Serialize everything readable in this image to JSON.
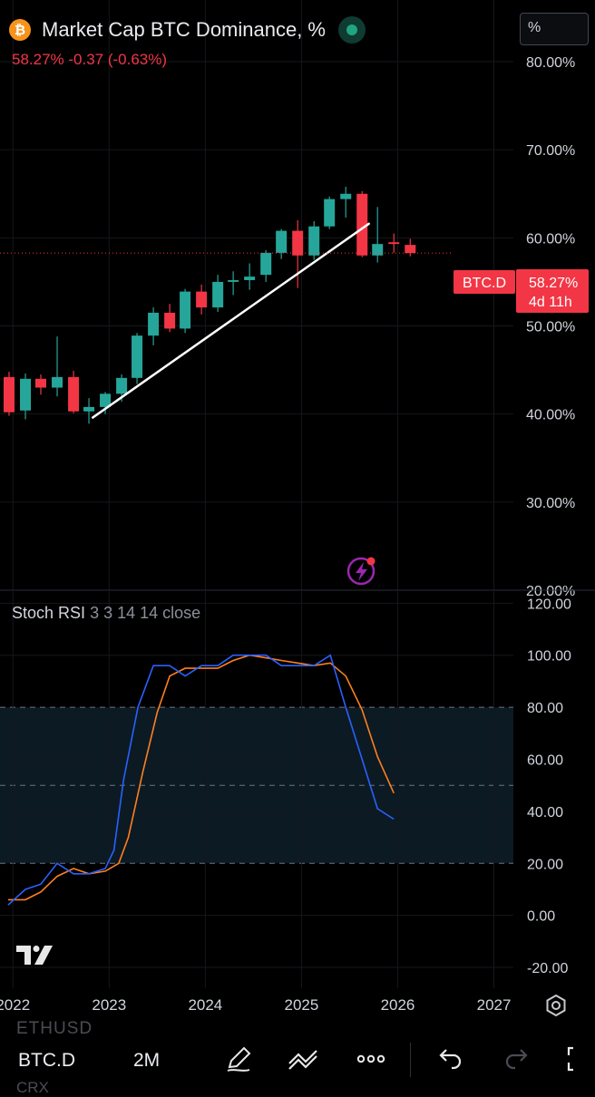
{
  "header": {
    "title": "Market Cap BTC Dominance, %",
    "change_text": "58.27%  -0.37 (-0.63%)",
    "scale_button": "%"
  },
  "price_label": {
    "symbol": "BTC.D",
    "value": "58.27%",
    "countdown": "4d 11h"
  },
  "indicator": {
    "name": "Stoch RSI",
    "params": "3 3 14 14 close"
  },
  "toolbar": {
    "symbol": "BTC.D",
    "interval": "2M",
    "peek_above": "ETHUSD",
    "peek_below": "CRX"
  },
  "colors": {
    "up": "#26a69a",
    "down": "#f23645",
    "k_line": "#2962ff",
    "d_line": "#ff7f1e",
    "band": "#0c1a24"
  },
  "icons": [
    "bitcoin-icon",
    "live-status-icon",
    "lightning-alert-icon",
    "tradingview-logo",
    "settings-icon",
    "pencil-icon",
    "trendline-icon",
    "more-icon",
    "undo-icon",
    "redo-icon",
    "fullscreen-icon"
  ],
  "chart_data": [
    {
      "type": "candlestick",
      "title": "Market Cap BTC Dominance, %",
      "y_ticks": [
        "80.00%",
        "70.00%",
        "60.00%",
        "50.00%",
        "40.00%",
        "30.00%",
        "20.00%"
      ],
      "ylim": [
        20,
        87
      ],
      "x_ticks": [
        "2022",
        "2023",
        "2024",
        "2025",
        "2026",
        "2027"
      ],
      "x_tick_values": [
        2022,
        2023,
        2024,
        2025,
        2026,
        2027
      ],
      "xlim": [
        2021.96,
        2027.9
      ],
      "current_value": 58.27,
      "candles": [
        {
          "t": 2021.96,
          "o": 44.2,
          "h": 44.8,
          "l": 39.8,
          "c": 40.2
        },
        {
          "t": 2022.13,
          "o": 40.4,
          "h": 44.6,
          "l": 39.4,
          "c": 44.0
        },
        {
          "t": 2022.29,
          "o": 44.0,
          "h": 44.5,
          "l": 42.2,
          "c": 43.0
        },
        {
          "t": 2022.46,
          "o": 43.0,
          "h": 48.8,
          "l": 42.0,
          "c": 44.2
        },
        {
          "t": 2022.63,
          "o": 44.2,
          "h": 44.9,
          "l": 40.1,
          "c": 40.3
        },
        {
          "t": 2022.79,
          "o": 40.3,
          "h": 41.8,
          "l": 38.9,
          "c": 40.8
        },
        {
          "t": 2022.96,
          "o": 40.8,
          "h": 42.5,
          "l": 40.0,
          "c": 42.3
        },
        {
          "t": 2023.13,
          "o": 42.3,
          "h": 44.5,
          "l": 41.4,
          "c": 44.1
        },
        {
          "t": 2023.29,
          "o": 44.1,
          "h": 49.2,
          "l": 43.4,
          "c": 48.9
        },
        {
          "t": 2023.46,
          "o": 48.9,
          "h": 52.1,
          "l": 47.8,
          "c": 51.5
        },
        {
          "t": 2023.63,
          "o": 51.5,
          "h": 52.5,
          "l": 49.3,
          "c": 49.7
        },
        {
          "t": 2023.79,
          "o": 49.7,
          "h": 54.2,
          "l": 49.2,
          "c": 53.9
        },
        {
          "t": 2023.96,
          "o": 53.9,
          "h": 54.7,
          "l": 51.3,
          "c": 52.1
        },
        {
          "t": 2024.13,
          "o": 52.1,
          "h": 55.8,
          "l": 51.6,
          "c": 55.0
        },
        {
          "t": 2024.29,
          "o": 55.0,
          "h": 56.2,
          "l": 53.5,
          "c": 55.2
        },
        {
          "t": 2024.46,
          "o": 55.2,
          "h": 57.1,
          "l": 54.1,
          "c": 55.6
        },
        {
          "t": 2024.63,
          "o": 55.8,
          "h": 58.6,
          "l": 55.0,
          "c": 58.3
        },
        {
          "t": 2024.79,
          "o": 58.3,
          "h": 61.0,
          "l": 57.6,
          "c": 60.8
        },
        {
          "t": 2024.96,
          "o": 60.8,
          "h": 62.0,
          "l": 54.3,
          "c": 58.0
        },
        {
          "t": 2025.13,
          "o": 58.0,
          "h": 61.9,
          "l": 57.5,
          "c": 61.3
        },
        {
          "t": 2025.29,
          "o": 61.3,
          "h": 64.7,
          "l": 61.0,
          "c": 64.4
        },
        {
          "t": 2025.46,
          "o": 64.4,
          "h": 65.8,
          "l": 62.3,
          "c": 65.0
        },
        {
          "t": 2025.63,
          "o": 65.0,
          "h": 65.3,
          "l": 57.8,
          "c": 58.0
        },
        {
          "t": 2025.79,
          "o": 58.0,
          "h": 63.5,
          "l": 57.2,
          "c": 59.3
        },
        {
          "t": 2025.96,
          "o": 59.5,
          "h": 60.5,
          "l": 58.3,
          "c": 59.3
        },
        {
          "t": 2026.13,
          "o": 59.2,
          "h": 59.9,
          "l": 57.9,
          "c": 58.27
        }
      ],
      "trendlines": [
        {
          "from": {
            "t": 2022.83,
            "v": 39.6
          },
          "to": {
            "t": 2025.7,
            "v": 61.6
          }
        }
      ]
    },
    {
      "type": "line",
      "title": "Stoch RSI",
      "y_ticks": [
        "120.00",
        "100.00",
        "80.00",
        "60.00",
        "40.00",
        "20.00",
        "0.00",
        "-20.00"
      ],
      "ylim": [
        -28,
        125
      ],
      "bands": [
        20,
        50,
        80
      ],
      "xlim": [
        2021.96,
        2027.9
      ],
      "series": [
        {
          "name": "K",
          "color": "#2962ff",
          "points": [
            [
              2021.95,
              4
            ],
            [
              2022.13,
              10
            ],
            [
              2022.29,
              12
            ],
            [
              2022.46,
              20
            ],
            [
              2022.63,
              16
            ],
            [
              2022.79,
              16
            ],
            [
              2022.96,
              18
            ],
            [
              2023.05,
              25
            ],
            [
              2023.15,
              52
            ],
            [
              2023.3,
              80
            ],
            [
              2023.46,
              96
            ],
            [
              2023.63,
              96
            ],
            [
              2023.79,
              92
            ],
            [
              2023.96,
              96
            ],
            [
              2024.13,
              96
            ],
            [
              2024.29,
              100
            ],
            [
              2024.46,
              100
            ],
            [
              2024.63,
              100
            ],
            [
              2024.79,
              96
            ],
            [
              2024.96,
              96
            ],
            [
              2025.13,
              96
            ],
            [
              2025.3,
              100
            ],
            [
              2025.46,
              80
            ],
            [
              2025.63,
              60
            ],
            [
              2025.79,
              41
            ],
            [
              2025.96,
              37
            ]
          ]
        },
        {
          "name": "D",
          "color": "#ff7f1e",
          "points": [
            [
              2021.95,
              6
            ],
            [
              2022.13,
              6
            ],
            [
              2022.29,
              9
            ],
            [
              2022.46,
              15
            ],
            [
              2022.63,
              18
            ],
            [
              2022.79,
              16
            ],
            [
              2022.96,
              17
            ],
            [
              2023.1,
              20
            ],
            [
              2023.2,
              30
            ],
            [
              2023.35,
              55
            ],
            [
              2023.5,
              78
            ],
            [
              2023.63,
              92
            ],
            [
              2023.79,
              95
            ],
            [
              2023.96,
              95
            ],
            [
              2024.13,
              95
            ],
            [
              2024.29,
              98
            ],
            [
              2024.46,
              100
            ],
            [
              2024.63,
              99
            ],
            [
              2024.79,
              98
            ],
            [
              2024.96,
              97
            ],
            [
              2025.13,
              96
            ],
            [
              2025.3,
              97
            ],
            [
              2025.46,
              92
            ],
            [
              2025.63,
              79
            ],
            [
              2025.79,
              61
            ],
            [
              2025.96,
              47
            ]
          ]
        }
      ]
    }
  ]
}
